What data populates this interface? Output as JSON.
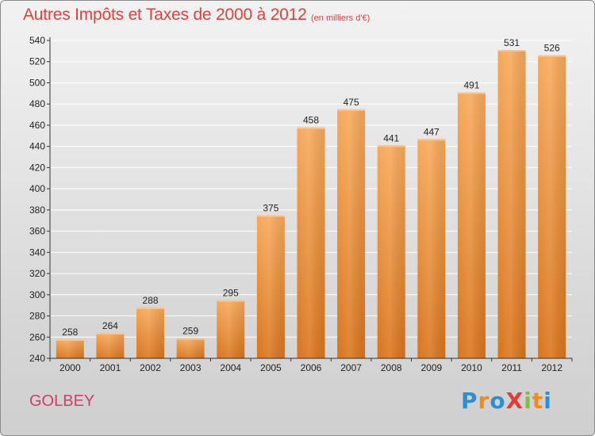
{
  "title": "Autres Impôts et Taxes de 2000 à 2012",
  "subtitle": "(en milliers d'€)",
  "commune": "GOLBEY",
  "logo": {
    "text": "ProXiti",
    "letters": [
      {
        "char": "P",
        "color": "#2e8fd0"
      },
      {
        "char": "r",
        "color": "#f08a1c"
      },
      {
        "char": "o",
        "color": "#2e8fd0"
      },
      {
        "char": "X",
        "color": "#e23b3b"
      },
      {
        "char": "i",
        "color": "#7cc242"
      },
      {
        "char": "t",
        "color": "#f08a1c"
      },
      {
        "char": "i",
        "color": "#2e8fd0"
      }
    ]
  },
  "colors": {
    "title": "#e0413a",
    "commune": "#cf3f66",
    "bar_light": "#f7a95a",
    "bar_dark": "#d9741c",
    "grid": "#ffffff",
    "axis": "#333333"
  },
  "chart_data": {
    "type": "bar",
    "title": "Autres Impôts et Taxes de 2000 à 2012",
    "subtitle": "(en milliers d'€)",
    "categories": [
      "2000",
      "2001",
      "2002",
      "2003",
      "2004",
      "2005",
      "2006",
      "2007",
      "2008",
      "2009",
      "2010",
      "2011",
      "2012"
    ],
    "values": [
      258,
      264,
      288,
      259,
      295,
      375,
      458,
      475,
      441,
      447,
      491,
      531,
      526
    ],
    "data_labels": [
      "258",
      "264",
      "288",
      "259",
      "295",
      "375",
      "458",
      "475",
      "441",
      "447",
      "491",
      "531",
      "526"
    ],
    "ylim": [
      240,
      540
    ],
    "yticks": [
      "240",
      "260",
      "280",
      "300",
      "320",
      "340",
      "360",
      "380",
      "400",
      "420",
      "440",
      "460",
      "480",
      "500",
      "520",
      "540"
    ],
    "xlabel": "",
    "ylabel": "",
    "grid": true,
    "legend": "none"
  }
}
